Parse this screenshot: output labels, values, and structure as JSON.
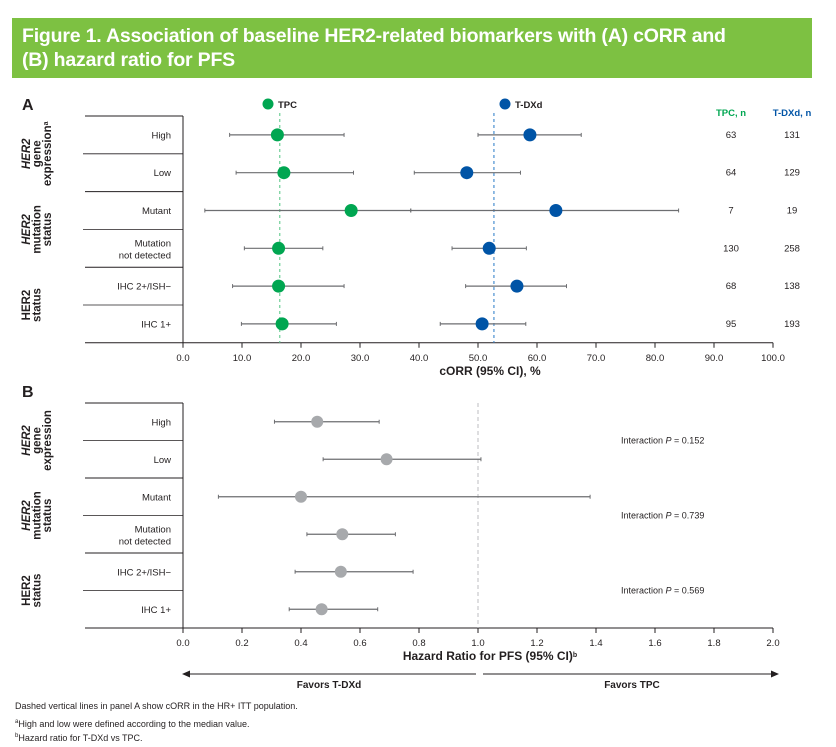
{
  "figure_title": "Figure 1. Association of baseline HER2-related biomarkers with (A) cORR and (B) hazard ratio for PFS",
  "title_lines": [
    "Figure 1. Association of baseline HER2-related biomarkers with (A) cORR and",
    "(B) hazard ratio for PFS"
  ],
  "colors": {
    "title_bg": "#7dc142",
    "tpc": "#00a651",
    "tdxd": "#0054a6",
    "hr_point": "#a7a9ac",
    "ci_line": "#6d6e71"
  },
  "chart_data": [
    {
      "panel": "A",
      "type": "scatter",
      "subtype": "forest",
      "xlabel": "cORR (95% CI), %",
      "xlim": [
        0,
        100
      ],
      "xticks": [
        "0.0",
        "10.0",
        "20.0",
        "30.0",
        "40.0",
        "50.0",
        "60.0",
        "70.0",
        "80.0",
        "90.0",
        "100.0"
      ],
      "xtick_values": [
        0,
        10,
        20,
        30,
        40,
        50,
        60,
        70,
        80,
        90,
        100
      ],
      "legend": [
        {
          "name": "TPC",
          "color": "#00a651"
        },
        {
          "name": "T-DXd",
          "color": "#0054a6"
        }
      ],
      "legend_placement": "top",
      "reference_lines": [
        {
          "series": "TPC",
          "value": 16.4
        },
        {
          "series": "T-DXd",
          "value": 52.7
        }
      ],
      "n_headers": {
        "tpc": "TPC, n",
        "tdxd": "T-DXd, n"
      },
      "groups": [
        {
          "label_italic": "HER2",
          "label_rest": [
            "gene",
            "expression"
          ],
          "sup": "a",
          "rows": [
            0,
            1
          ]
        },
        {
          "label_italic": "HER2",
          "label_rest": [
            "mutation",
            "status"
          ],
          "sup": "",
          "rows": [
            2,
            3
          ]
        },
        {
          "label_italic": "",
          "label_bold": "HER2",
          "label_rest": [
            "status"
          ],
          "sup": "",
          "rows": [
            4,
            5
          ]
        }
      ],
      "rows": [
        {
          "label": [
            "High"
          ],
          "tpc": {
            "est": 16.0,
            "lo": 7.9,
            "hi": 27.3
          },
          "tdxd": {
            "est": 58.8,
            "lo": 50.0,
            "hi": 67.5
          },
          "tpc_n": "63",
          "tdxd_n": "131"
        },
        {
          "label": [
            "Low"
          ],
          "tpc": {
            "est": 17.1,
            "lo": 9.0,
            "hi": 28.9
          },
          "tdxd": {
            "est": 48.1,
            "lo": 39.2,
            "hi": 57.2
          },
          "tpc_n": "64",
          "tdxd_n": "129"
        },
        {
          "label": [
            "Mutant"
          ],
          "tpc": {
            "est": 28.5,
            "lo": 3.7,
            "hi": 38.6
          },
          "tdxd": {
            "est": 63.2,
            "lo": 38.6,
            "hi": 84.0
          },
          "tpc_n": "7",
          "tdxd_n": "19"
        },
        {
          "label": [
            "Mutation",
            "not detected"
          ],
          "tpc": {
            "est": 16.2,
            "lo": 10.4,
            "hi": 23.7
          },
          "tdxd": {
            "est": 51.9,
            "lo": 45.6,
            "hi": 58.2
          },
          "tpc_n": "130",
          "tdxd_n": "258"
        },
        {
          "label": [
            "IHC 2+/ISH−"
          ],
          "tpc": {
            "est": 16.2,
            "lo": 8.4,
            "hi": 27.3
          },
          "tdxd": {
            "est": 56.6,
            "lo": 47.9,
            "hi": 65.0
          },
          "tpc_n": "68",
          "tdxd_n": "138"
        },
        {
          "label": [
            "IHC 1+"
          ],
          "tpc": {
            "est": 16.8,
            "lo": 9.9,
            "hi": 26.0
          },
          "tdxd": {
            "est": 50.7,
            "lo": 43.6,
            "hi": 58.1
          },
          "tpc_n": "95",
          "tdxd_n": "193"
        }
      ]
    },
    {
      "panel": "B",
      "type": "scatter",
      "subtype": "forest",
      "xlabel": "Hazard Ratio for PFS (95% CI)",
      "xlabel_sup": "b",
      "xlim": [
        0,
        2
      ],
      "xticks": [
        "0.0",
        "0.2",
        "0.4",
        "0.6",
        "0.8",
        "1.0",
        "1.2",
        "1.4",
        "1.6",
        "1.8",
        "2.0"
      ],
      "xtick_values": [
        0,
        0.2,
        0.4,
        0.6,
        0.8,
        1.0,
        1.2,
        1.4,
        1.6,
        1.8,
        2.0
      ],
      "reference_line": 1.0,
      "favors_left": "Favors T-DXd",
      "favors_right": "Favors TPC",
      "groups": [
        {
          "label_italic": "HER2",
          "label_rest": [
            "gene",
            "expression"
          ],
          "sup": "",
          "rows": [
            0,
            1
          ],
          "interaction": "0.152"
        },
        {
          "label_italic": "HER2",
          "label_rest": [
            "mutation",
            "status"
          ],
          "sup": "",
          "rows": [
            2,
            3
          ],
          "interaction": "0.739"
        },
        {
          "label_italic": "",
          "label_bold": "HER2",
          "label_rest": [
            "status"
          ],
          "sup": "",
          "rows": [
            4,
            5
          ],
          "interaction": "0.569"
        }
      ],
      "interaction_prefix": "Interaction ",
      "interaction_p": "P",
      "interaction_eq": " = ",
      "rows": [
        {
          "label": [
            "High"
          ],
          "est": 0.455,
          "lo": 0.31,
          "hi": 0.665
        },
        {
          "label": [
            "Low"
          ],
          "est": 0.69,
          "lo": 0.475,
          "hi": 1.01
        },
        {
          "label": [
            "Mutant"
          ],
          "est": 0.4,
          "lo": 0.12,
          "hi": 1.38
        },
        {
          "label": [
            "Mutation",
            "not detected"
          ],
          "est": 0.54,
          "lo": 0.42,
          "hi": 0.72
        },
        {
          "label": [
            "IHC 2+/ISH−"
          ],
          "est": 0.535,
          "lo": 0.38,
          "hi": 0.78
        },
        {
          "label": [
            "IHC 1+"
          ],
          "est": 0.47,
          "lo": 0.36,
          "hi": 0.66
        }
      ]
    }
  ],
  "footnotes": {
    "dashed": "Dashed vertical lines in panel A show cORR in the HR+ ITT population.",
    "a_mark": "a",
    "a": "High and low were defined according to the median value.",
    "b_mark": "b",
    "b": "Hazard ratio for T-DXd vs TPC."
  }
}
